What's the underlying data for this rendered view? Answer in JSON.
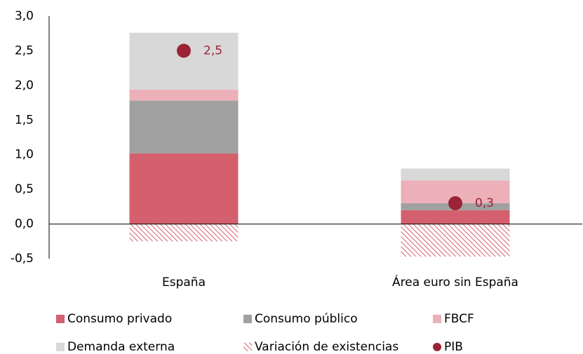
{
  "chart_data": {
    "type": "bar",
    "categories": [
      "España",
      "Área euro sin España"
    ],
    "series": [
      {
        "name": "Consumo privado",
        "color": "#d4606e",
        "values": [
          1.02,
          0.2
        ]
      },
      {
        "name": "Consumo público",
        "color": "#a0a0a0",
        "values": [
          0.76,
          0.1
        ]
      },
      {
        "name": "FBCF",
        "color": "#ebb0b8",
        "values": [
          0.16,
          0.33
        ]
      },
      {
        "name": "Demanda externa",
        "color": "#d8d8d8",
        "values": [
          0.82,
          0.17
        ]
      },
      {
        "name": "Variación de existencias",
        "color": "#d4606e",
        "pattern": "hatch",
        "values": [
          -0.25,
          -0.47
        ]
      },
      {
        "name": "PIB",
        "color": "#9b2335",
        "type": "scatter",
        "values": [
          2.5,
          0.3
        ],
        "value_labels": [
          "2,5",
          "0,3"
        ]
      }
    ],
    "ylim": [
      -0.5,
      3.0
    ],
    "yticks": [
      {
        "value": -0.5,
        "label": "-0,5"
      },
      {
        "value": 0,
        "label": "0,0"
      },
      {
        "value": 0.5,
        "label": "0,5"
      },
      {
        "value": 1.0,
        "label": "1,0"
      },
      {
        "value": 1.5,
        "label": "1,5"
      },
      {
        "value": 2.0,
        "label": "2,0"
      },
      {
        "value": 2.5,
        "label": "2,5"
      },
      {
        "value": 3.0,
        "label": "3,0"
      }
    ],
    "grid": false
  }
}
